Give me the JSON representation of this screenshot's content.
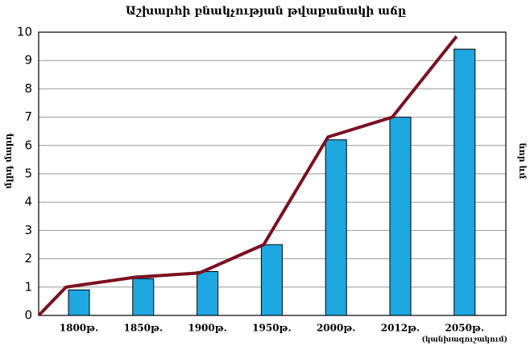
{
  "chart_data": {
    "type": "bar_line",
    "title": "Աշխարհի բնակչության թվաքանակի աճը",
    "y_label": "մլրդ մարդ",
    "y2_label": "նոր ևմ",
    "categories": [
      null,
      "1800թ.",
      "1850թ.",
      "1900թ.",
      "1950թ.",
      "2000թ.",
      "2012թ.",
      "2050թ."
    ],
    "forecast_note": "(կանխագուշակում)",
    "series": [
      {
        "type": "bar",
        "color": "#1ea7e1",
        "values": [
          null,
          0.9,
          1.3,
          1.55,
          2.5,
          6.2,
          7.0,
          9.4
        ]
      },
      {
        "type": "line",
        "color": "#7b1020",
        "values": [
          0,
          1.0,
          1.35,
          1.5,
          2.5,
          6.3,
          7.0,
          9.85
        ]
      }
    ],
    "ylim": [
      0,
      10
    ],
    "yticks": [
      0,
      1,
      2,
      3,
      4,
      5,
      6,
      7,
      8,
      9,
      10
    ],
    "grid": true
  }
}
